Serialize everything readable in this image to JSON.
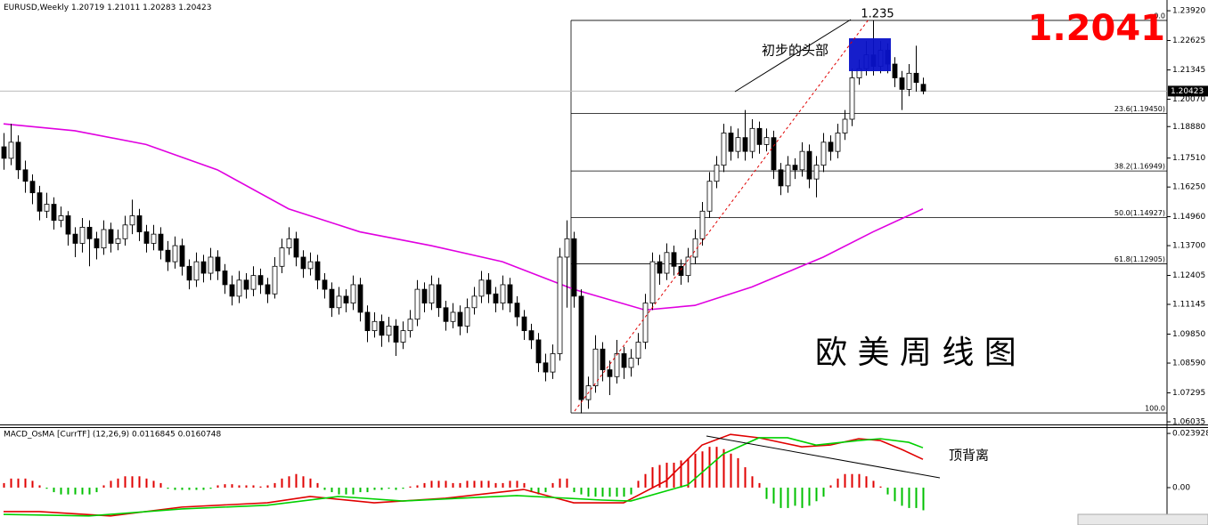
{
  "chart_data": {
    "type": "candlestick",
    "symbol": "EURUSD,Weekly",
    "macd_title": "MACD_OsMA [CurrTF] (12,26,9) 0.0116845 0.0160748",
    "annotations": {
      "peak_price": "1.235",
      "head_label": "初步的头部",
      "big_price": "1.2041",
      "chart_name": "欧 美 周 线 图",
      "divergence": "顶背离"
    },
    "ylim": [
      1.0592,
      1.2431
    ],
    "yticks": [
      {
        "value": 1.2392,
        "label": "1.23920"
      },
      {
        "value": 1.22625,
        "label": "1.22625"
      },
      {
        "value": 1.21345,
        "label": "1.21345"
      },
      {
        "value": 1.2007,
        "label": "1.20070"
      },
      {
        "value": 1.1888,
        "label": "1.18880"
      },
      {
        "value": 1.1751,
        "label": "1.17510"
      },
      {
        "value": 1.1625,
        "label": "1.16250"
      },
      {
        "value": 1.1496,
        "label": "1.14960"
      },
      {
        "value": 1.137,
        "label": "1.13700"
      },
      {
        "value": 1.12405,
        "label": "1.12405"
      },
      {
        "value": 1.11145,
        "label": "1.11145"
      },
      {
        "value": 1.0985,
        "label": "1.09850"
      },
      {
        "value": 1.0859,
        "label": "1.08590"
      },
      {
        "value": 1.07295,
        "label": "1.07295"
      },
      {
        "value": 1.06035,
        "label": "1.06035"
      }
    ],
    "fib": [
      {
        "label": "0.0",
        "value": 1.235
      },
      {
        "label": "23.6(1.19450)",
        "value": 1.1945
      },
      {
        "label": "38.2(1.16949)",
        "value": 1.16949
      },
      {
        "label": "50.0(1.14927)",
        "value": 1.14927
      },
      {
        "label": "61.8(1.12905)",
        "value": 1.12905
      },
      {
        "label": "100.0",
        "value": 1.0642
      }
    ],
    "candles": [
      [
        1.18,
        1.186,
        1.17,
        1.175
      ],
      [
        1.175,
        1.19,
        1.172,
        1.182
      ],
      [
        1.182,
        1.185,
        1.166,
        1.17
      ],
      [
        1.17,
        1.174,
        1.16,
        1.165
      ],
      [
        1.165,
        1.168,
        1.155,
        1.16
      ],
      [
        1.16,
        1.163,
        1.148,
        1.152
      ],
      [
        1.152,
        1.16,
        1.149,
        1.155
      ],
      [
        1.155,
        1.158,
        1.144,
        1.148
      ],
      [
        1.148,
        1.154,
        1.145,
        1.15
      ],
      [
        1.15,
        1.152,
        1.137,
        1.142
      ],
      [
        1.142,
        1.145,
        1.132,
        1.138
      ],
      [
        1.138,
        1.149,
        1.134,
        1.145
      ],
      [
        1.145,
        1.148,
        1.128,
        1.14
      ],
      [
        1.14,
        1.143,
        1.131,
        1.136
      ],
      [
        1.136,
        1.148,
        1.133,
        1.144
      ],
      [
        1.144,
        1.147,
        1.134,
        1.138
      ],
      [
        1.138,
        1.144,
        1.135,
        1.14
      ],
      [
        1.14,
        1.15,
        1.137,
        1.146
      ],
      [
        1.146,
        1.157,
        1.142,
        1.15
      ],
      [
        1.15,
        1.153,
        1.139,
        1.143
      ],
      [
        1.143,
        1.146,
        1.134,
        1.138
      ],
      [
        1.138,
        1.146,
        1.135,
        1.142
      ],
      [
        1.142,
        1.145,
        1.131,
        1.135
      ],
      [
        1.135,
        1.139,
        1.126,
        1.13
      ],
      [
        1.13,
        1.141,
        1.127,
        1.137
      ],
      [
        1.137,
        1.14,
        1.124,
        1.128
      ],
      [
        1.128,
        1.131,
        1.118,
        1.122
      ],
      [
        1.122,
        1.134,
        1.119,
        1.13
      ],
      [
        1.13,
        1.133,
        1.121,
        1.125
      ],
      [
        1.125,
        1.136,
        1.122,
        1.132
      ],
      [
        1.132,
        1.135,
        1.122,
        1.126
      ],
      [
        1.126,
        1.129,
        1.116,
        1.12
      ],
      [
        1.12,
        1.124,
        1.111,
        1.115
      ],
      [
        1.115,
        1.126,
        1.112,
        1.122
      ],
      [
        1.122,
        1.125,
        1.114,
        1.118
      ],
      [
        1.118,
        1.128,
        1.115,
        1.124
      ],
      [
        1.124,
        1.127,
        1.116,
        1.12
      ],
      [
        1.12,
        1.123,
        1.112,
        1.116
      ],
      [
        1.116,
        1.132,
        1.114,
        1.128
      ],
      [
        1.128,
        1.14,
        1.125,
        1.136
      ],
      [
        1.136,
        1.145,
        1.133,
        1.14
      ],
      [
        1.14,
        1.143,
        1.128,
        1.132
      ],
      [
        1.132,
        1.135,
        1.123,
        1.127
      ],
      [
        1.127,
        1.134,
        1.124,
        1.13
      ],
      [
        1.13,
        1.133,
        1.118,
        1.122
      ],
      [
        1.122,
        1.125,
        1.114,
        1.118
      ],
      [
        1.118,
        1.121,
        1.106,
        1.11
      ],
      [
        1.11,
        1.119,
        1.107,
        1.115
      ],
      [
        1.115,
        1.118,
        1.108,
        1.112
      ],
      [
        1.112,
        1.124,
        1.109,
        1.12
      ],
      [
        1.12,
        1.123,
        1.104,
        1.108
      ],
      [
        1.108,
        1.111,
        1.095,
        1.1
      ],
      [
        1.1,
        1.108,
        1.097,
        1.104
      ],
      [
        1.104,
        1.107,
        1.093,
        1.098
      ],
      [
        1.098,
        1.106,
        1.095,
        1.102
      ],
      [
        1.102,
        1.105,
        1.089,
        1.095
      ],
      [
        1.095,
        1.104,
        1.092,
        1.1
      ],
      [
        1.1,
        1.109,
        1.097,
        1.105
      ],
      [
        1.105,
        1.122,
        1.102,
        1.118
      ],
      [
        1.118,
        1.121,
        1.108,
        1.112
      ],
      [
        1.112,
        1.124,
        1.109,
        1.12
      ],
      [
        1.12,
        1.123,
        1.106,
        1.11
      ],
      [
        1.11,
        1.113,
        1.1,
        1.104
      ],
      [
        1.104,
        1.112,
        1.101,
        1.108
      ],
      [
        1.108,
        1.111,
        1.098,
        1.102
      ],
      [
        1.102,
        1.114,
        1.099,
        1.11
      ],
      [
        1.11,
        1.119,
        1.107,
        1.115
      ],
      [
        1.115,
        1.126,
        1.112,
        1.122
      ],
      [
        1.122,
        1.125,
        1.112,
        1.116
      ],
      [
        1.116,
        1.119,
        1.108,
        1.112
      ],
      [
        1.112,
        1.124,
        1.109,
        1.12
      ],
      [
        1.12,
        1.123,
        1.108,
        1.112
      ],
      [
        1.112,
        1.115,
        1.102,
        1.106
      ],
      [
        1.106,
        1.109,
        1.096,
        1.1
      ],
      [
        1.1,
        1.103,
        1.092,
        1.096
      ],
      [
        1.096,
        1.099,
        1.082,
        1.086
      ],
      [
        1.086,
        1.09,
        1.078,
        1.082
      ],
      [
        1.082,
        1.094,
        1.079,
        1.09
      ],
      [
        1.09,
        1.136,
        1.087,
        1.132
      ],
      [
        1.132,
        1.148,
        1.11,
        1.14
      ],
      [
        1.14,
        1.143,
        1.11,
        1.115
      ],
      [
        1.115,
        1.118,
        1.064,
        1.07
      ],
      [
        1.07,
        1.08,
        1.066,
        1.076
      ],
      [
        1.076,
        1.098,
        1.073,
        1.092
      ],
      [
        1.092,
        1.095,
        1.078,
        1.083
      ],
      [
        1.083,
        1.087,
        1.072,
        1.08
      ],
      [
        1.08,
        1.096,
        1.077,
        1.09
      ],
      [
        1.09,
        1.093,
        1.079,
        1.084
      ],
      [
        1.084,
        1.092,
        1.08,
        1.088
      ],
      [
        1.088,
        1.099,
        1.085,
        1.095
      ],
      [
        1.095,
        1.116,
        1.092,
        1.112
      ],
      [
        1.112,
        1.134,
        1.109,
        1.13
      ],
      [
        1.13,
        1.133,
        1.12,
        1.125
      ],
      [
        1.125,
        1.138,
        1.122,
        1.134
      ],
      [
        1.134,
        1.137,
        1.124,
        1.128
      ],
      [
        1.128,
        1.131,
        1.12,
        1.124
      ],
      [
        1.124,
        1.136,
        1.121,
        1.132
      ],
      [
        1.132,
        1.144,
        1.129,
        1.14
      ],
      [
        1.14,
        1.156,
        1.137,
        1.152
      ],
      [
        1.152,
        1.169,
        1.149,
        1.165
      ],
      [
        1.165,
        1.176,
        1.162,
        1.172
      ],
      [
        1.172,
        1.19,
        1.169,
        1.186
      ],
      [
        1.186,
        1.189,
        1.174,
        1.178
      ],
      [
        1.178,
        1.188,
        1.175,
        1.184
      ],
      [
        1.184,
        1.196,
        1.174,
        1.178
      ],
      [
        1.178,
        1.192,
        1.175,
        1.188
      ],
      [
        1.188,
        1.191,
        1.177,
        1.181
      ],
      [
        1.181,
        1.188,
        1.178,
        1.184
      ],
      [
        1.184,
        1.187,
        1.166,
        1.17
      ],
      [
        1.17,
        1.173,
        1.159,
        1.163
      ],
      [
        1.163,
        1.176,
        1.16,
        1.172
      ],
      [
        1.172,
        1.175,
        1.166,
        1.17
      ],
      [
        1.17,
        1.182,
        1.167,
        1.178
      ],
      [
        1.178,
        1.181,
        1.162,
        1.166
      ],
      [
        1.166,
        1.176,
        1.158,
        1.172
      ],
      [
        1.172,
        1.186,
        1.169,
        1.182
      ],
      [
        1.182,
        1.185,
        1.174,
        1.178
      ],
      [
        1.178,
        1.19,
        1.175,
        1.186
      ],
      [
        1.186,
        1.196,
        1.183,
        1.192
      ],
      [
        1.192,
        1.214,
        1.189,
        1.21
      ],
      [
        1.21,
        1.218,
        1.207,
        1.214
      ],
      [
        1.214,
        1.226,
        1.211,
        1.22
      ],
      [
        1.22,
        1.235,
        1.211,
        1.215
      ],
      [
        1.215,
        1.226,
        1.212,
        1.222
      ],
      [
        1.222,
        1.225,
        1.212,
        1.216
      ],
      [
        1.216,
        1.219,
        1.206,
        1.21
      ],
      [
        1.21,
        1.213,
        1.196,
        1.205
      ],
      [
        1.205,
        1.216,
        1.202,
        1.212
      ],
      [
        1.212,
        1.224,
        1.204,
        1.208
      ],
      [
        1.20719,
        1.21011,
        1.20283,
        1.20423
      ]
    ],
    "ma": {
      "color": "#e000e0",
      "x": [
        0,
        10,
        20,
        30,
        40,
        50,
        60,
        70,
        80,
        90,
        97,
        105,
        115,
        122,
        129
      ],
      "values": [
        1.19,
        1.187,
        1.181,
        1.17,
        1.153,
        1.143,
        1.137,
        1.13,
        1.118,
        1.109,
        1.111,
        1.119,
        1.132,
        1.143,
        1.153
      ]
    },
    "y2lim": [
      -0.0165,
      0.0271
    ],
    "y2ticks": [
      0.023928,
      {
        "value": 0,
        "label": "0.00"
      }
    ],
    "histogram": [
      0.002,
      0.004,
      0.004,
      0.004,
      0.003,
      0.001,
      -0.0005,
      -0.002,
      -0.003,
      -0.003,
      -0.003,
      -0.003,
      -0.003,
      -0.002,
      0.001,
      0.003,
      0.004,
      0.005,
      0.005,
      0.005,
      0.004,
      0.003,
      0.002,
      -0.0005,
      -0.001,
      -0.001,
      -0.001,
      -0.001,
      -0.001,
      -0.0005,
      0.001,
      0.0015,
      0.0015,
      0.001,
      0.001,
      0.001,
      0.0005,
      0.001,
      0.002,
      0.004,
      0.005,
      0.006,
      0.005,
      0.004,
      0.002,
      -0.001,
      -0.002,
      -0.003,
      -0.003,
      -0.003,
      -0.002,
      -0.002,
      -0.001,
      -0.001,
      -0.0005,
      -0.001,
      -0.0005,
      0.0005,
      0.001,
      0.002,
      0.003,
      0.003,
      0.003,
      0.002,
      0.002,
      0.003,
      0.003,
      0.003,
      0.003,
      0.002,
      0.002,
      0.003,
      0.003,
      0.002,
      -0.002,
      -0.003,
      -0.002,
      0.002,
      0.004,
      0.004,
      -0.002,
      -0.003,
      -0.004,
      -0.004,
      -0.004,
      -0.004,
      -0.004,
      -0.004,
      -0.003,
      0.003,
      0.006,
      0.009,
      0.01,
      0.011,
      0.011,
      0.012,
      0.013,
      0.015,
      0.016,
      0.018,
      0.018,
      0.017,
      0.015,
      0.013,
      0.009,
      0.005,
      0.002,
      -0.005,
      -0.007,
      -0.009,
      -0.009,
      -0.008,
      -0.009,
      -0.008,
      -0.006,
      -0.004,
      0.001,
      0.004,
      0.006,
      0.006,
      0.006,
      0.005,
      0.003,
      0.0005,
      -0.003,
      -0.006,
      -0.008,
      -0.009,
      -0.009,
      -0.01
    ],
    "macd_lines": [
      {
        "color": "#e00000",
        "x": [
          0,
          5,
          15,
          25,
          37,
          43,
          52,
          62,
          73,
          80,
          87,
          93,
          98,
          102,
          106,
          112,
          116,
          120,
          123,
          126,
          129
        ],
        "values": [
          -0.0106,
          -0.0106,
          -0.0125,
          -0.0086,
          -0.0067,
          -0.0039,
          -0.0067,
          -0.0047,
          -0.0008,
          -0.0067,
          -0.0067,
          0.0031,
          0.0188,
          0.0235,
          0.022,
          0.018,
          0.0188,
          0.0216,
          0.0208,
          0.0169,
          0.0125
        ]
      },
      {
        "color": "#00d000",
        "x": [
          0,
          12,
          25,
          37,
          47,
          56,
          72,
          84,
          88,
          96,
          101,
          106,
          110,
          114,
          120,
          123,
          127,
          129
        ],
        "values": [
          -0.0118,
          -0.0125,
          -0.0094,
          -0.0078,
          -0.0039,
          -0.0059,
          -0.0035,
          -0.0055,
          -0.0059,
          0.0012,
          0.0149,
          0.022,
          0.022,
          0.0188,
          0.0208,
          0.0216,
          0.02,
          0.0176
        ]
      }
    ]
  }
}
